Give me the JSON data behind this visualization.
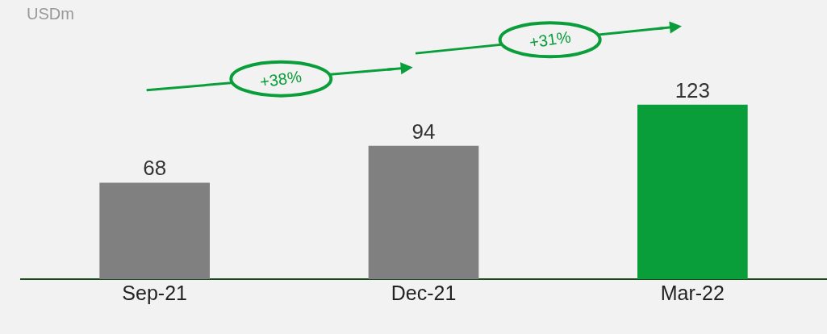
{
  "chart_data": {
    "type": "bar",
    "categories": [
      "Sep-21",
      "Dec-21",
      "Mar-22"
    ],
    "values": [
      68,
      94,
      123
    ],
    "colors": [
      "#808080",
      "#808080",
      "#0a9e3a"
    ],
    "data_labels": true,
    "annotations": [
      "USDm",
      "+38%",
      "+31%"
    ],
    "tick_labels": "x",
    "grid": false
  }
}
